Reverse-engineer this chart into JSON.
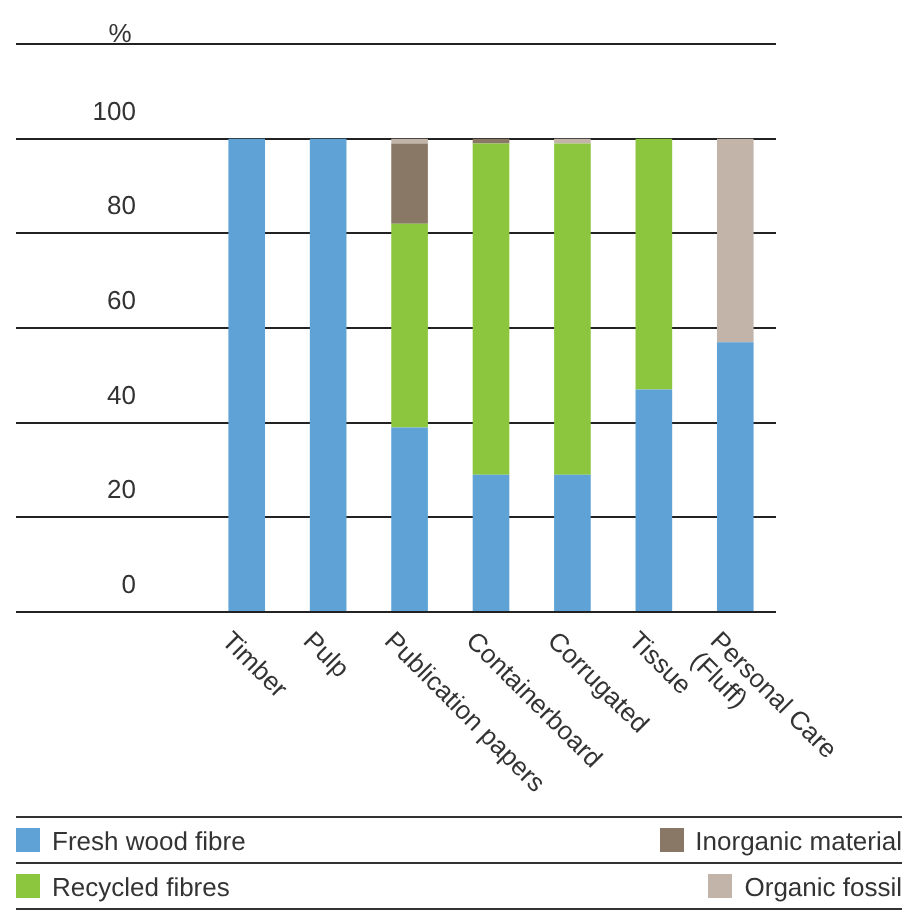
{
  "chart_data": {
    "type": "bar",
    "stacked": true,
    "ylabel": "%",
    "categories": [
      "Timber",
      "Pulp",
      "Publication papers",
      "Containerboard",
      "Corrugated",
      "Tissue",
      "Personal Care\n(Fluff)"
    ],
    "series": [
      {
        "name": "Fresh wood fibre",
        "color": "#5fa3d6",
        "values": [
          100,
          100,
          39,
          29,
          29,
          47,
          57
        ]
      },
      {
        "name": "Recycled fibres",
        "color": "#8cc63f",
        "values": [
          0,
          0,
          43,
          70,
          70,
          53,
          0
        ]
      },
      {
        "name": "Inorganic material",
        "color": "#8a7866",
        "values": [
          0,
          0,
          17,
          1,
          0,
          0,
          0
        ]
      },
      {
        "name": "Organic fossil",
        "color": "#c2b4a8",
        "values": [
          0,
          0,
          1,
          0,
          1,
          0,
          43
        ]
      }
    ],
    "ylim": [
      0,
      120
    ],
    "yticks": [
      0,
      20,
      40,
      60,
      80,
      100,
      {
        "value": 120,
        "label": null
      }
    ],
    "grid": "y",
    "legend": "bottom"
  }
}
